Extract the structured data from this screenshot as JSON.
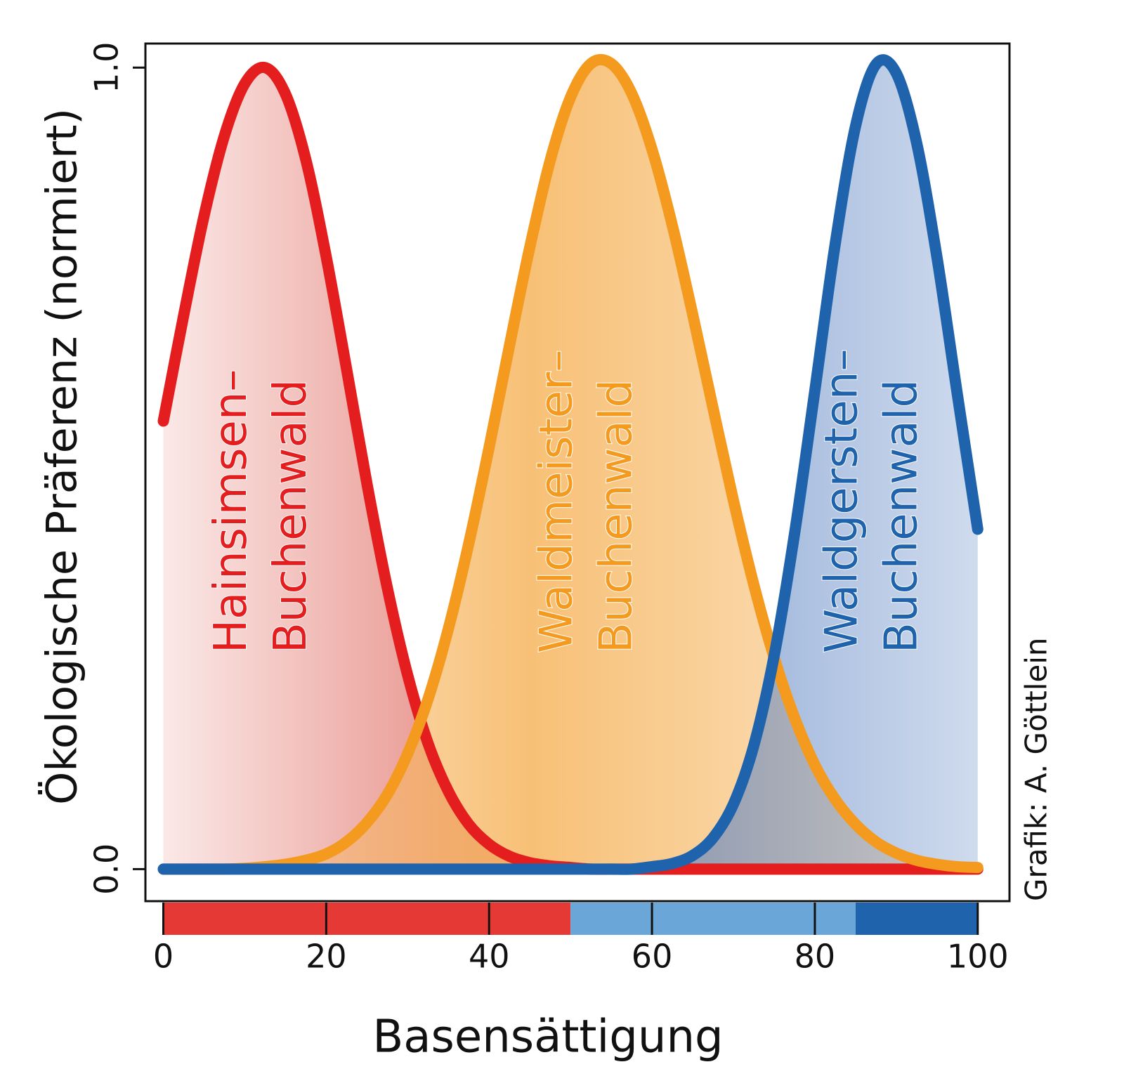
{
  "chart_data": {
    "type": "area",
    "x_label": "Basensättigung",
    "y_label": "Ökologische Präferenz (normiert)",
    "credit": "Grafik: A. Göttlein",
    "xlim": [
      -2.2,
      103.9
    ],
    "ylim": [
      -0.04,
      1.03
    ],
    "xticks": [
      0,
      20,
      40,
      60,
      80,
      100
    ],
    "yticks": [
      {
        "value": 0,
        "label": "0.0"
      },
      {
        "value": 1,
        "label": "1.0"
      }
    ],
    "x": [
      0,
      2.5,
      5,
      7.5,
      10,
      12.5,
      15,
      17.5,
      20,
      22.5,
      25,
      27.5,
      30,
      32.5,
      35,
      37.5,
      40,
      42.5,
      45,
      47.5,
      50,
      52.5,
      55,
      57.5,
      60,
      62.5,
      65,
      67.5,
      70,
      72.5,
      75,
      77.5,
      80,
      82.5,
      85,
      87.5,
      90,
      92.5,
      95,
      97.5,
      100
    ],
    "series": [
      {
        "name": "Hainsimsen-Buchenwald",
        "label": [
          "Hainsimsen–",
          "Buchenwald"
        ],
        "color": "#e41e1e",
        "fill": "#e06a60",
        "values": [
          0.559,
          0.691,
          0.815,
          0.915,
          0.98,
          1.0,
          0.967,
          0.885,
          0.764,
          0.624,
          0.481,
          0.351,
          0.242,
          0.157,
          0.097,
          0.056,
          0.031,
          0.016,
          0.008,
          0.004,
          0.002,
          0,
          0,
          0,
          0,
          0,
          0,
          0,
          0,
          0,
          0,
          0,
          0,
          0,
          0,
          0,
          0,
          0,
          0,
          0,
          0
        ]
      },
      {
        "name": "Waldmeister-Buchenwald",
        "label": [
          "Waldmeister–",
          "Buchenwald"
        ],
        "color": "#f39a1f",
        "fill": "#f6b55e",
        "values": [
          0,
          0,
          0,
          0,
          0.001,
          0.003,
          0.006,
          0.011,
          0.019,
          0.034,
          0.058,
          0.093,
          0.144,
          0.212,
          0.3,
          0.406,
          0.526,
          0.653,
          0.776,
          0.884,
          0.963,
          1.005,
          1.005,
          0.968,
          0.898,
          0.803,
          0.692,
          0.575,
          0.46,
          0.355,
          0.264,
          0.189,
          0.13,
          0.087,
          0.056,
          0.034,
          0.02,
          0.011,
          0.006,
          0.003,
          0.002
        ]
      },
      {
        "name": "Waldgersten-Buchenwald",
        "label": [
          "Waldgersten–",
          "Buchenwald"
        ],
        "color": "#1f63ad",
        "fill": "#5f86c4",
        "values": [
          0,
          0,
          0,
          0,
          0,
          0,
          0,
          0,
          0,
          0,
          0,
          0,
          0,
          0,
          0,
          0,
          0,
          0,
          0,
          0,
          0,
          0,
          0,
          0,
          0.003,
          0.007,
          0.017,
          0.039,
          0.081,
          0.154,
          0.266,
          0.418,
          0.597,
          0.78,
          0.927,
          1.004,
          0.993,
          0.906,
          0.763,
          0.592,
          0.424
        ]
      }
    ],
    "color_bar": [
      {
        "from": 0,
        "to": 50,
        "color": "#e53935"
      },
      {
        "from": 50,
        "to": 85,
        "color": "#6aa6d8"
      },
      {
        "from": 85,
        "to": 100,
        "color": "#1f63ad"
      }
    ]
  }
}
